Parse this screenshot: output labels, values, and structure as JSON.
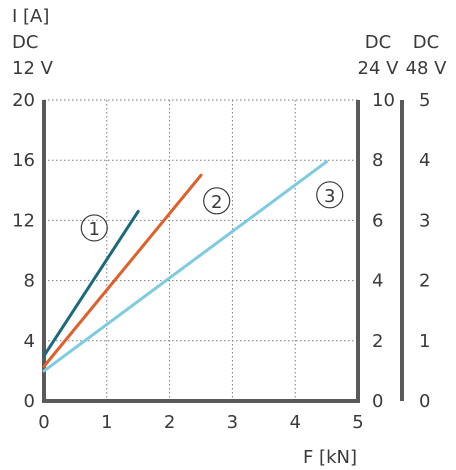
{
  "chart_data": {
    "type": "line",
    "xlabel": "F [kN]",
    "ylabel_lines": [
      "I [A]",
      "DC",
      "12 V"
    ],
    "right_header_24": [
      "DC",
      "24 V"
    ],
    "right_header_48": [
      "DC",
      "48 V"
    ],
    "xlim": [
      0,
      5
    ],
    "ylim": [
      0,
      20
    ],
    "x_ticks": [
      "0",
      "1",
      "2",
      "3",
      "4",
      "5"
    ],
    "y_ticks_12v": [
      "0",
      "4",
      "8",
      "12",
      "16",
      "20"
    ],
    "y_ticks_24v": [
      "0",
      "2",
      "4",
      "6",
      "8",
      "10"
    ],
    "y_ticks_48v": [
      "0",
      "1",
      "2",
      "3",
      "4",
      "5"
    ],
    "grid": true,
    "series": [
      {
        "name": "1",
        "color": "#1b6a7a",
        "points": [
          [
            0,
            3.0
          ],
          [
            1.5,
            12.6
          ]
        ],
        "label_at": [
          0.8,
          11.5
        ]
      },
      {
        "name": "2",
        "color": "#e0602a",
        "points": [
          [
            0,
            2.3
          ],
          [
            2.5,
            15.0
          ]
        ],
        "label_at": [
          2.75,
          13.3
        ]
      },
      {
        "name": "3",
        "color": "#7ecbe0",
        "points": [
          [
            0,
            2.0
          ],
          [
            4.5,
            15.9
          ]
        ],
        "label_at": [
          4.55,
          13.7
        ]
      }
    ]
  }
}
